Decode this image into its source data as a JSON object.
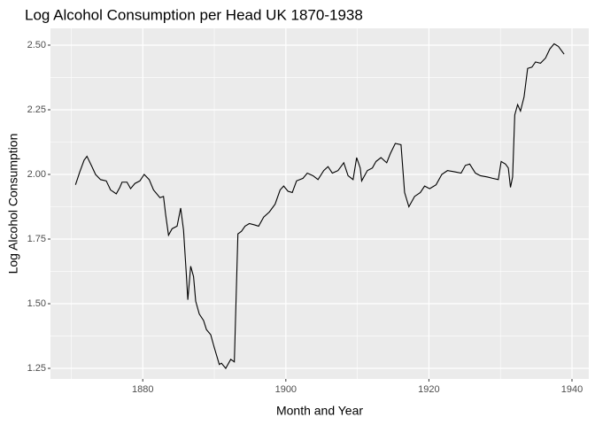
{
  "chart_data": {
    "type": "line",
    "title": "Log Alcohol Consumption per Head UK 1870-1938",
    "x_label": "Month and Year",
    "y_label": "Log Alcohol Consumption",
    "xlim": [
      1867.1,
      1942.35
    ],
    "ylim": [
      1.209,
      2.565
    ],
    "xticks": [
      1880,
      1900,
      1920,
      1940
    ],
    "yticks": [
      {
        "value": 1.25,
        "label": "1.25"
      },
      {
        "value": 1.5,
        "label": "1.50"
      },
      {
        "value": 1.75,
        "label": "1.75"
      },
      {
        "value": 2.0,
        "label": "2.00"
      },
      {
        "value": 2.25,
        "label": "2.25"
      },
      {
        "value": 2.5,
        "label": "2.50"
      }
    ],
    "x_minor_ticks": [
      1870,
      1890,
      1910,
      1930
    ],
    "y_minor_ticks": [
      1.375,
      1.625,
      1.875,
      2.125,
      2.375
    ],
    "grid": true,
    "panel_color": "#ebebeb",
    "series": [
      {
        "color": "#000000",
        "x": [
          1870.6,
          1871.2,
          1871.8,
          1872.2,
          1872.9,
          1873.4,
          1874.1,
          1874.9,
          1875.5,
          1876.3,
          1876.8,
          1877.1,
          1877.8,
          1878.3,
          1878.9,
          1879.6,
          1880.2,
          1880.9,
          1881.5,
          1882.4,
          1882.9,
          1883.2,
          1883.6,
          1884.1,
          1884.8,
          1885.3,
          1885.7,
          1886.1,
          1886.3,
          1886.7,
          1887.1,
          1887.4,
          1887.9,
          1888.5,
          1888.9,
          1889.5,
          1890.0,
          1890.7,
          1891.0,
          1891.6,
          1892.3,
          1892.8,
          1893.3,
          1893.8,
          1894.3,
          1894.9,
          1895.6,
          1896.2,
          1896.9,
          1897.7,
          1898.5,
          1899.2,
          1899.7,
          1900.3,
          1900.9,
          1901.5,
          1902.4,
          1903.0,
          1903.8,
          1904.5,
          1905.3,
          1905.9,
          1906.5,
          1907.3,
          1908.1,
          1908.7,
          1909.4,
          1909.9,
          1910.4,
          1910.6,
          1911.4,
          1912.1,
          1912.6,
          1913.3,
          1914.1,
          1914.6,
          1915.3,
          1916.1,
          1916.6,
          1917.2,
          1918.0,
          1918.8,
          1919.4,
          1920.1,
          1921.0,
          1921.8,
          1922.6,
          1923.6,
          1924.5,
          1925.1,
          1925.7,
          1926.5,
          1927.2,
          1928.2,
          1928.9,
          1929.7,
          1930.1,
          1930.7,
          1931.1,
          1931.4,
          1931.7,
          1932.0,
          1932.4,
          1932.8,
          1933.3,
          1933.8,
          1934.4,
          1934.9,
          1935.6,
          1936.3,
          1936.9,
          1937.5,
          1938.1,
          1938.9
        ],
        "values": [
          1.96,
          2.01,
          2.055,
          2.07,
          2.03,
          2.0,
          1.98,
          1.975,
          1.94,
          1.925,
          1.95,
          1.97,
          1.97,
          1.945,
          1.965,
          1.975,
          2.0,
          1.98,
          1.94,
          1.91,
          1.915,
          1.845,
          1.765,
          1.79,
          1.8,
          1.87,
          1.785,
          1.61,
          1.515,
          1.645,
          1.605,
          1.51,
          1.46,
          1.435,
          1.4,
          1.38,
          1.33,
          1.265,
          1.27,
          1.25,
          1.285,
          1.275,
          1.77,
          1.78,
          1.8,
          1.81,
          1.805,
          1.8,
          1.835,
          1.855,
          1.885,
          1.94,
          1.955,
          1.935,
          1.93,
          1.975,
          1.985,
          2.005,
          1.995,
          1.98,
          2.015,
          2.03,
          2.005,
          2.015,
          2.045,
          1.995,
          1.98,
          2.065,
          2.025,
          1.975,
          2.015,
          2.025,
          2.05,
          2.065,
          2.045,
          2.08,
          2.12,
          2.115,
          1.93,
          1.875,
          1.915,
          1.93,
          1.955,
          1.945,
          1.96,
          2.0,
          2.015,
          2.01,
          2.005,
          2.035,
          2.04,
          2.005,
          1.995,
          1.99,
          1.985,
          1.98,
          2.05,
          2.04,
          2.025,
          1.95,
          1.99,
          2.23,
          2.27,
          2.245,
          2.3,
          2.41,
          2.415,
          2.435,
          2.43,
          2.45,
          2.485,
          2.505,
          2.495,
          2.465
        ]
      }
    ]
  }
}
